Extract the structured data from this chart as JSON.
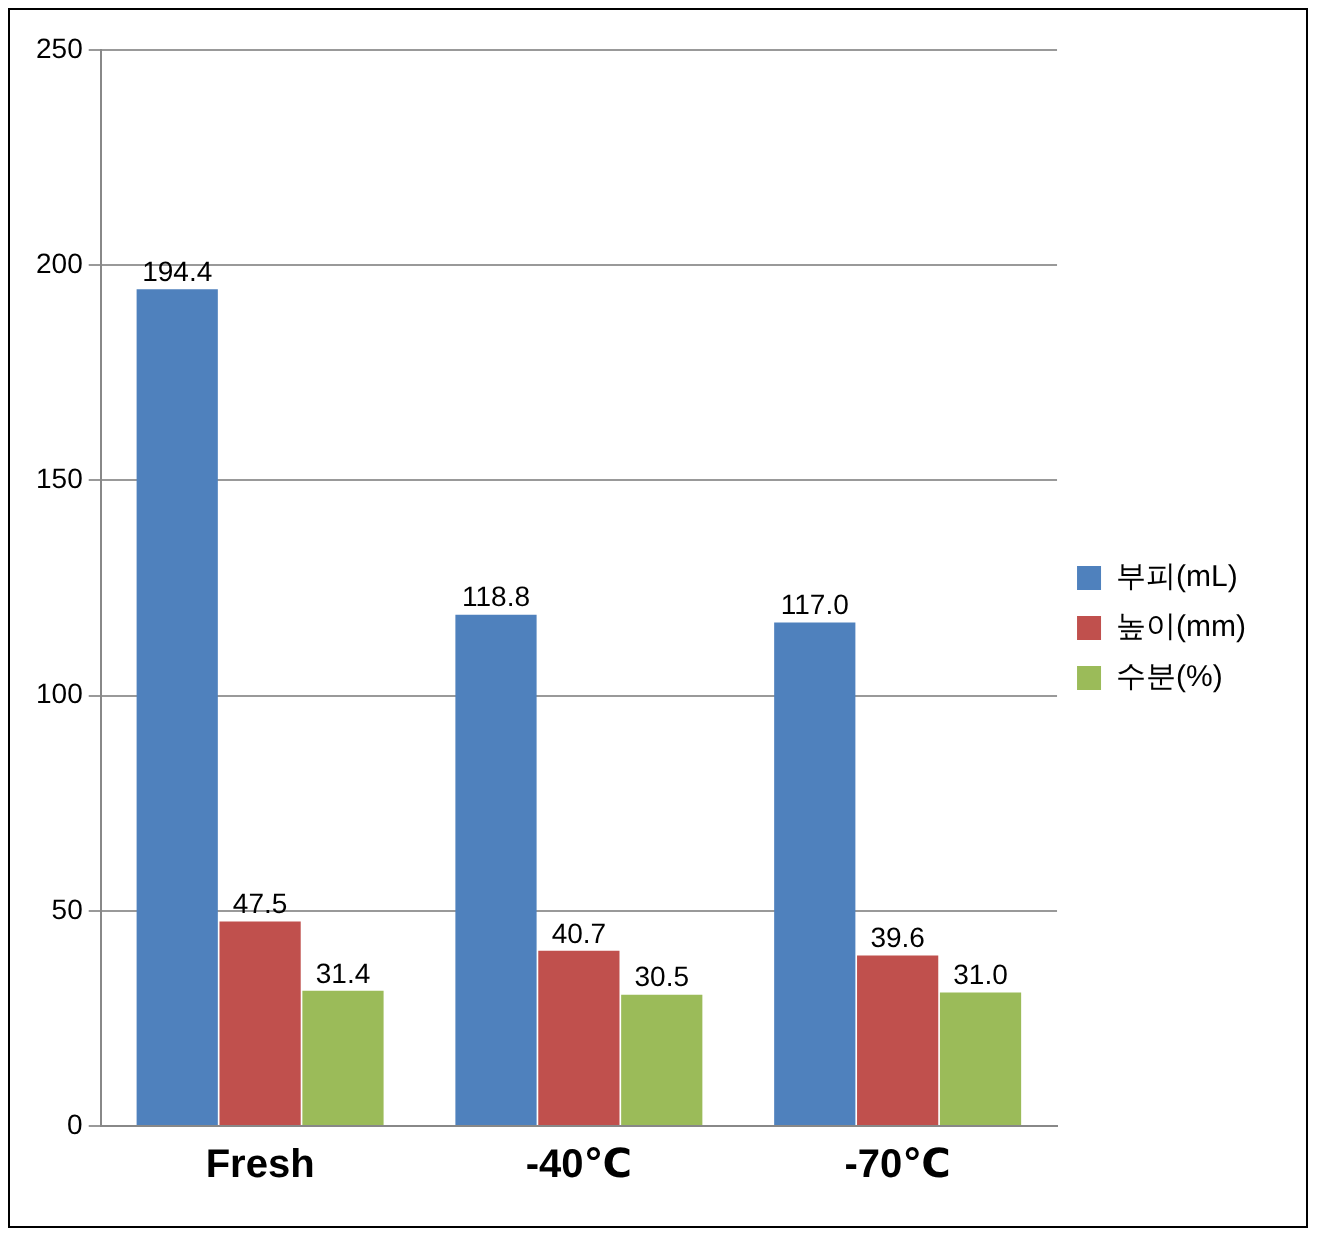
{
  "chart_data": {
    "type": "bar",
    "categories": [
      "Fresh",
      "-40℃",
      "-70℃"
    ],
    "series": [
      {
        "name": "부피(mL)",
        "color": "#4f81bd",
        "values": [
          194.4,
          118.8,
          117.0
        ],
        "value_labels": [
          "194.4",
          "118.8",
          "117.0"
        ]
      },
      {
        "name": "높이(mm)",
        "color": "#c0504d",
        "values": [
          47.5,
          40.7,
          39.6
        ],
        "value_labels": [
          "47.5",
          "40.7",
          "39.6"
        ]
      },
      {
        "name": "수분(%)",
        "color": "#9bbb59",
        "values": [
          31.4,
          30.5,
          31.0
        ],
        "value_labels": [
          "31.4",
          "30.5",
          "31.0"
        ]
      }
    ],
    "ylim": [
      0,
      250
    ],
    "yticks": [
      0,
      50,
      100,
      150,
      200,
      250
    ],
    "grid": "y",
    "legend": "right"
  }
}
